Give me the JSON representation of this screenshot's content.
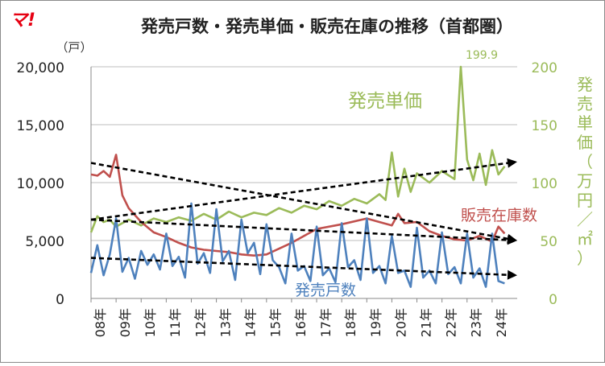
{
  "logo": "マ!",
  "chart_data": {
    "type": "line",
    "title": "発売戸数・発売単価・販売在庫の推移（首都圏）",
    "y_left_unit": "（戸）",
    "y_right_label": [
      "発",
      "売",
      "単",
      "価",
      "（",
      "万",
      "円",
      "／",
      "㎡",
      "）"
    ],
    "x_ticks": [
      "08年",
      "09年",
      "10年",
      "11年",
      "12年",
      "13年",
      "14年",
      "15年",
      "16年",
      "17年",
      "18年",
      "19年",
      "20年",
      "21年",
      "22年",
      "23年",
      "24年"
    ],
    "y_left_ticks": [
      "20,000",
      "15,000",
      "10,000",
      "5,000",
      "0"
    ],
    "y_right_ticks": [
      "200",
      "150",
      "100",
      "50",
      "0"
    ],
    "y_left_lim": [
      0,
      20000
    ],
    "y_right_lim": [
      0,
      200
    ],
    "x_lim": [
      0,
      17
    ],
    "grid": true,
    "peak_label": "199.9",
    "colors": {
      "units": "#4e81bd",
      "inventory": "#c0504d",
      "price": "#9bbb59",
      "trend": "#000000",
      "logo": "#e60012",
      "frame": "#8a8a8a"
    },
    "series": [
      {
        "key": "inventory",
        "name": "販売在庫数",
        "axis": "left",
        "x": [
          0.0,
          0.25,
          0.5,
          0.75,
          1.0,
          1.25,
          1.5,
          2.0,
          2.5,
          3.0,
          3.5,
          4.0,
          4.5,
          5.0,
          5.5,
          6.0,
          6.5,
          7.0,
          8.0,
          9.0,
          10.0,
          11.0,
          11.5,
          12.0,
          12.25,
          12.5,
          13.0,
          13.5,
          14.0,
          14.5,
          15.0,
          15.5,
          16.0,
          16.25,
          16.5
        ],
        "y": [
          10700,
          10600,
          11000,
          10500,
          12400,
          8900,
          7800,
          6600,
          5700,
          5300,
          4800,
          4400,
          4200,
          4100,
          4000,
          3800,
          3700,
          3800,
          4800,
          6000,
          6400,
          6900,
          6600,
          6300,
          7300,
          6500,
          6600,
          5800,
          5400,
          5100,
          5000,
          5400,
          4900,
          6200,
          5600
        ]
      },
      {
        "key": "units",
        "name": "発売戸数",
        "axis": "left",
        "x": [
          0.0,
          0.25,
          0.5,
          0.75,
          1.0,
          1.25,
          1.5,
          1.75,
          2.0,
          2.25,
          2.5,
          2.75,
          3.0,
          3.25,
          3.5,
          3.75,
          4.0,
          4.25,
          4.5,
          4.75,
          5.0,
          5.25,
          5.5,
          5.75,
          6.0,
          6.25,
          6.5,
          6.75,
          7.0,
          7.25,
          7.5,
          7.75,
          8.0,
          8.25,
          8.5,
          8.75,
          9.0,
          9.25,
          9.5,
          9.75,
          10.0,
          10.25,
          10.5,
          10.75,
          11.0,
          11.25,
          11.5,
          11.75,
          12.0,
          12.25,
          12.5,
          12.75,
          13.0,
          13.25,
          13.5,
          13.75,
          14.0,
          14.25,
          14.5,
          14.75,
          15.0,
          15.25,
          15.5,
          15.75,
          16.0,
          16.25,
          16.5
        ],
        "y": [
          2200,
          4600,
          2000,
          3800,
          6900,
          2300,
          3500,
          1700,
          4100,
          2900,
          3800,
          2500,
          5600,
          2800,
          3600,
          1800,
          8200,
          3000,
          3900,
          2200,
          7700,
          3200,
          4100,
          1600,
          6800,
          3900,
          4800,
          2100,
          6400,
          3300,
          2700,
          1300,
          5600,
          2400,
          2800,
          1500,
          6200,
          2000,
          2600,
          1400,
          6500,
          2700,
          3300,
          1600,
          6900,
          2200,
          2800,
          1300,
          5400,
          2200,
          2400,
          1000,
          6100,
          1800,
          2400,
          1300,
          5700,
          2100,
          2700,
          1300,
          5600,
          1800,
          2600,
          1000,
          5600,
          1500,
          1300
        ]
      },
      {
        "key": "price",
        "name": "発売単価",
        "axis": "right",
        "x": [
          0.0,
          0.25,
          0.5,
          0.75,
          1.0,
          1.5,
          2.0,
          2.5,
          3.0,
          3.5,
          4.0,
          4.5,
          5.0,
          5.5,
          6.0,
          6.5,
          7.0,
          7.5,
          8.0,
          8.5,
          9.0,
          9.5,
          10.0,
          10.5,
          11.0,
          11.5,
          11.75,
          12.0,
          12.25,
          12.5,
          12.75,
          13.0,
          13.5,
          14.0,
          14.5,
          14.75,
          15.0,
          15.25,
          15.5,
          15.75,
          16.0,
          16.25,
          16.5
        ],
        "y": [
          57,
          71,
          66,
          68,
          62,
          68,
          63,
          69,
          66,
          70,
          67,
          73,
          68,
          75,
          70,
          74,
          72,
          78,
          74,
          80,
          77,
          84,
          80,
          86,
          82,
          90,
          85,
          126,
          88,
          112,
          92,
          108,
          100,
          110,
          103,
          199.9,
          120,
          102,
          125,
          98,
          128,
          107,
          114
        ]
      }
    ],
    "trends": [
      {
        "key": "units_trend",
        "axis": "left",
        "x": [
          0,
          17
        ],
        "y": [
          3500,
          2000
        ]
      },
      {
        "key": "inventory_trend",
        "axis": "left",
        "x": [
          0,
          17
        ],
        "y": [
          11700,
          5000
        ]
      },
      {
        "key": "price_trend",
        "axis": "right",
        "x": [
          0,
          17
        ],
        "y": [
          68,
          118
        ]
      },
      {
        "key": "inventory_trend_2",
        "axis": "left",
        "x": [
          0,
          17
        ],
        "y": [
          6800,
          5000
        ]
      }
    ]
  }
}
